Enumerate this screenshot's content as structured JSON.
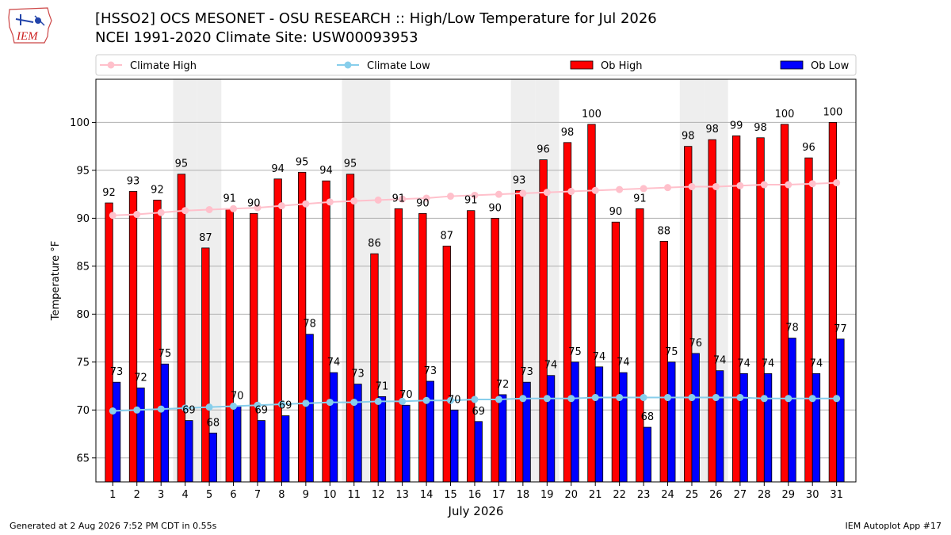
{
  "header": {
    "logo_text": "IEM",
    "title": "[HSSO2] OCS MESONET - OSU RESEARCH :: High/Low Temperature for Jul 2026",
    "subtitle": "NCEI 1991-2020 Climate Site: USW00093953"
  },
  "footer": {
    "generated": "Generated at 2 Aug 2026 7:52 PM CDT in 0.55s",
    "app": "IEM Autoplot App #17"
  },
  "colors": {
    "ob_high": "#ff0000",
    "ob_low": "#0000ff",
    "climate_high": "#ffc0cb",
    "climate_low": "#87ceeb",
    "weekend_shade": "#eeeeee",
    "grid": "#b0b0b0"
  },
  "chart_data": {
    "type": "bar",
    "xlabel": "July 2026",
    "ylabel": "Temperature °F",
    "ylim": [
      62.5,
      104.5
    ],
    "yticks": [
      65,
      70,
      75,
      80,
      85,
      90,
      95,
      100
    ],
    "grid": "horizontal",
    "legend_position": "top",
    "categories": [
      "1",
      "2",
      "3",
      "4",
      "5",
      "6",
      "7",
      "8",
      "9",
      "10",
      "11",
      "12",
      "13",
      "14",
      "15",
      "16",
      "17",
      "18",
      "19",
      "20",
      "21",
      "22",
      "23",
      "24",
      "25",
      "26",
      "27",
      "28",
      "29",
      "30",
      "31"
    ],
    "shaded_days": [
      4,
      5,
      11,
      12,
      18,
      19,
      25,
      26
    ],
    "series": [
      {
        "name": "Climate High",
        "kind": "line",
        "values": [
          90.3,
          90.4,
          90.6,
          90.8,
          90.9,
          91.0,
          91.1,
          91.3,
          91.5,
          91.7,
          91.8,
          91.9,
          92.0,
          92.1,
          92.3,
          92.4,
          92.5,
          92.6,
          92.7,
          92.8,
          92.9,
          93.0,
          93.1,
          93.2,
          93.3,
          93.3,
          93.4,
          93.5,
          93.5,
          93.6,
          93.7
        ]
      },
      {
        "name": "Climate Low",
        "kind": "line",
        "values": [
          69.9,
          70.0,
          70.1,
          70.2,
          70.3,
          70.4,
          70.5,
          70.6,
          70.7,
          70.8,
          70.8,
          70.9,
          70.9,
          71.0,
          71.0,
          71.1,
          71.1,
          71.2,
          71.2,
          71.2,
          71.3,
          71.3,
          71.3,
          71.3,
          71.3,
          71.3,
          71.3,
          71.2,
          71.2,
          71.2,
          71.2
        ]
      },
      {
        "name": "Ob High",
        "kind": "bar",
        "values": [
          91.6,
          92.8,
          91.9,
          94.6,
          86.9,
          91.0,
          90.5,
          94.1,
          94.8,
          93.9,
          94.6,
          86.3,
          91.0,
          90.5,
          87.1,
          90.8,
          90.0,
          92.9,
          96.1,
          97.9,
          99.8,
          89.6,
          91.0,
          87.6,
          97.5,
          98.2,
          98.6,
          98.4,
          99.8,
          96.3,
          100.0
        ],
        "labels": [
          "92",
          "93",
          "92",
          "95",
          "87",
          "91",
          "90",
          "94",
          "95",
          "94",
          "95",
          "86",
          "91",
          "90",
          "87",
          "91",
          "90",
          "93",
          "96",
          "98",
          "100",
          "90",
          "91",
          "88",
          "98",
          "98",
          "99",
          "98",
          "100",
          "96",
          "100"
        ]
      },
      {
        "name": "Ob Low",
        "kind": "bar",
        "values": [
          72.9,
          72.3,
          74.8,
          68.9,
          67.6,
          70.4,
          68.9,
          69.4,
          77.9,
          73.9,
          72.7,
          71.4,
          70.5,
          73.0,
          70.0,
          68.8,
          71.6,
          72.9,
          73.6,
          75.0,
          74.5,
          73.9,
          68.2,
          75.0,
          75.9,
          74.1,
          73.8,
          73.8,
          77.5,
          73.8,
          77.4
        ],
        "labels": [
          "73",
          "72",
          "75",
          "69",
          "68",
          "70",
          "69",
          "69",
          "78",
          "74",
          "73",
          "71",
          "70",
          "73",
          "70",
          "69",
          "72",
          "73",
          "74",
          "75",
          "74",
          "74",
          "68",
          "75",
          "76",
          "74",
          "74",
          "74",
          "78",
          "74",
          "77"
        ]
      }
    ]
  }
}
